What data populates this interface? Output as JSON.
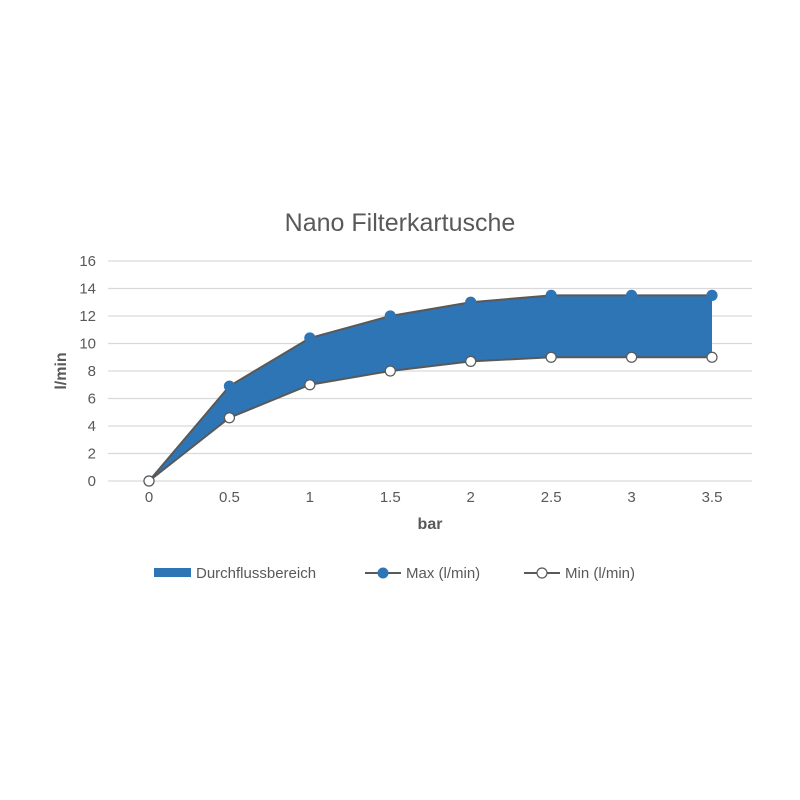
{
  "chart_data": {
    "type": "area",
    "title": "Nano Filterkartusche",
    "xlabel": "bar",
    "ylabel": "l/min",
    "x": [
      0,
      0.5,
      1,
      1.5,
      2,
      2.5,
      3,
      3.5
    ],
    "x_tick_labels": [
      "0",
      "0.5",
      "1",
      "1.5",
      "2",
      "2.5",
      "3",
      "3.5"
    ],
    "y_ticks": [
      0,
      2,
      4,
      6,
      8,
      10,
      12,
      14,
      16
    ],
    "ylim": [
      0,
      16
    ],
    "grid": true,
    "legend_position": "bottom",
    "series": [
      {
        "name": "Durchflussbereich",
        "kind": "band",
        "color": "#2E75B6"
      },
      {
        "name": "Max (l/min)",
        "kind": "line",
        "values": [
          0,
          6.9,
          10.4,
          12,
          13,
          13.5,
          13.5,
          13.5
        ],
        "marker_fill": "#2E75B6"
      },
      {
        "name": "Min (l/min)",
        "kind": "line",
        "values": [
          0,
          4.6,
          7,
          8,
          8.7,
          9,
          9,
          9
        ],
        "marker_fill": "#FFFFFF"
      }
    ],
    "colors": {
      "band": "#2E75B6",
      "line": "#595959",
      "grid": "#D9D9D9"
    }
  }
}
